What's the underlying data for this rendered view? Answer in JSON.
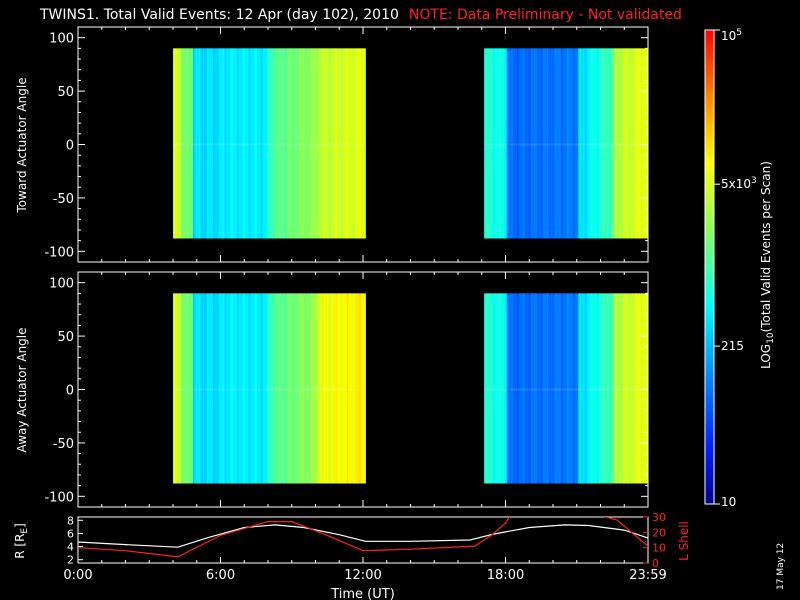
{
  "title": "TWINS1. Total Valid Events: 12 Apr (day 102), 2010",
  "note": "NOTE: Data Preliminary - Not validated",
  "date_stamp": "17 May 12",
  "colors": {
    "note": "#ff2020",
    "background": "#000000",
    "axis": "#ffffff",
    "lshell": "#ff2020",
    "r_line": "#ffffff"
  },
  "chart_data": [
    {
      "type": "heatmap",
      "ylabel": "Toward Actuator Angle",
      "ylim": [
        -110,
        110
      ],
      "yticks": [
        -100,
        -50,
        0,
        50,
        100
      ],
      "data_spans_hours": [
        [
          4.0,
          12.1
        ],
        [
          17.1,
          24.0
        ]
      ],
      "angle_range": [
        -88,
        90
      ]
    },
    {
      "type": "heatmap",
      "ylabel": "Away Actuator Angle",
      "ylim": [
        -110,
        110
      ],
      "yticks": [
        -100,
        -50,
        0,
        50,
        100
      ],
      "data_spans_hours": [
        [
          4.0,
          12.1
        ],
        [
          17.1,
          24.0
        ]
      ],
      "angle_range": [
        -88,
        90
      ]
    },
    {
      "type": "line",
      "xlabel": "Time (UT)",
      "xlim": [
        0,
        24
      ],
      "xticks": [
        "0:00",
        "6:00",
        "12:00",
        "18:00",
        "23:59"
      ],
      "xtick_hours": [
        0,
        6,
        12,
        18,
        24
      ],
      "left_axis": {
        "label": "R [R",
        "label_sub": "E",
        "label_end": "]",
        "ylim": [
          1.5,
          8.5
        ],
        "yticks": [
          2,
          4,
          6,
          8
        ]
      },
      "right_axis": {
        "label": "L Shell",
        "ylim": [
          0,
          30
        ],
        "yticks": [
          0,
          10,
          20,
          30
        ]
      },
      "series": [
        {
          "name": "R [RE]",
          "axis": "left",
          "x": [
            0,
            2,
            4.2,
            5.5,
            7,
            8.3,
            9.5,
            11,
            12.1,
            14,
            16.5,
            17.5,
            19,
            20.5,
            21.5,
            23,
            24
          ],
          "y": [
            4.7,
            4.3,
            3.9,
            5.4,
            6.9,
            7.3,
            6.9,
            5.8,
            4.8,
            4.8,
            5.0,
            5.9,
            6.9,
            7.3,
            7.2,
            6.5,
            5.3
          ]
        },
        {
          "name": "L Shell",
          "axis": "right",
          "x": [
            0,
            2,
            4.2,
            6,
            8,
            9,
            10.5,
            12,
            14,
            16.7,
            17.4,
            18.0,
            18.2,
            20,
            22,
            22.7,
            23.3,
            24
          ],
          "y": [
            10,
            8,
            4,
            18,
            27,
            27,
            18,
            8,
            9,
            11,
            18,
            26,
            31,
            31,
            31,
            28,
            20,
            11
          ]
        }
      ]
    }
  ],
  "colorbar": {
    "label": "LOG",
    "label_sub": "10",
    "label_rest": "(Total Valid Events per Scan)",
    "scale": "log",
    "range": [
      10,
      100000
    ],
    "ticks": [
      {
        "value": 100000,
        "base": "10",
        "exp": "5"
      },
      {
        "value": 5000,
        "base": "5x10",
        "exp": "3"
      },
      {
        "value": 215,
        "base": "215",
        "exp": ""
      },
      {
        "value": 10,
        "base": "10",
        "exp": ""
      }
    ]
  }
}
